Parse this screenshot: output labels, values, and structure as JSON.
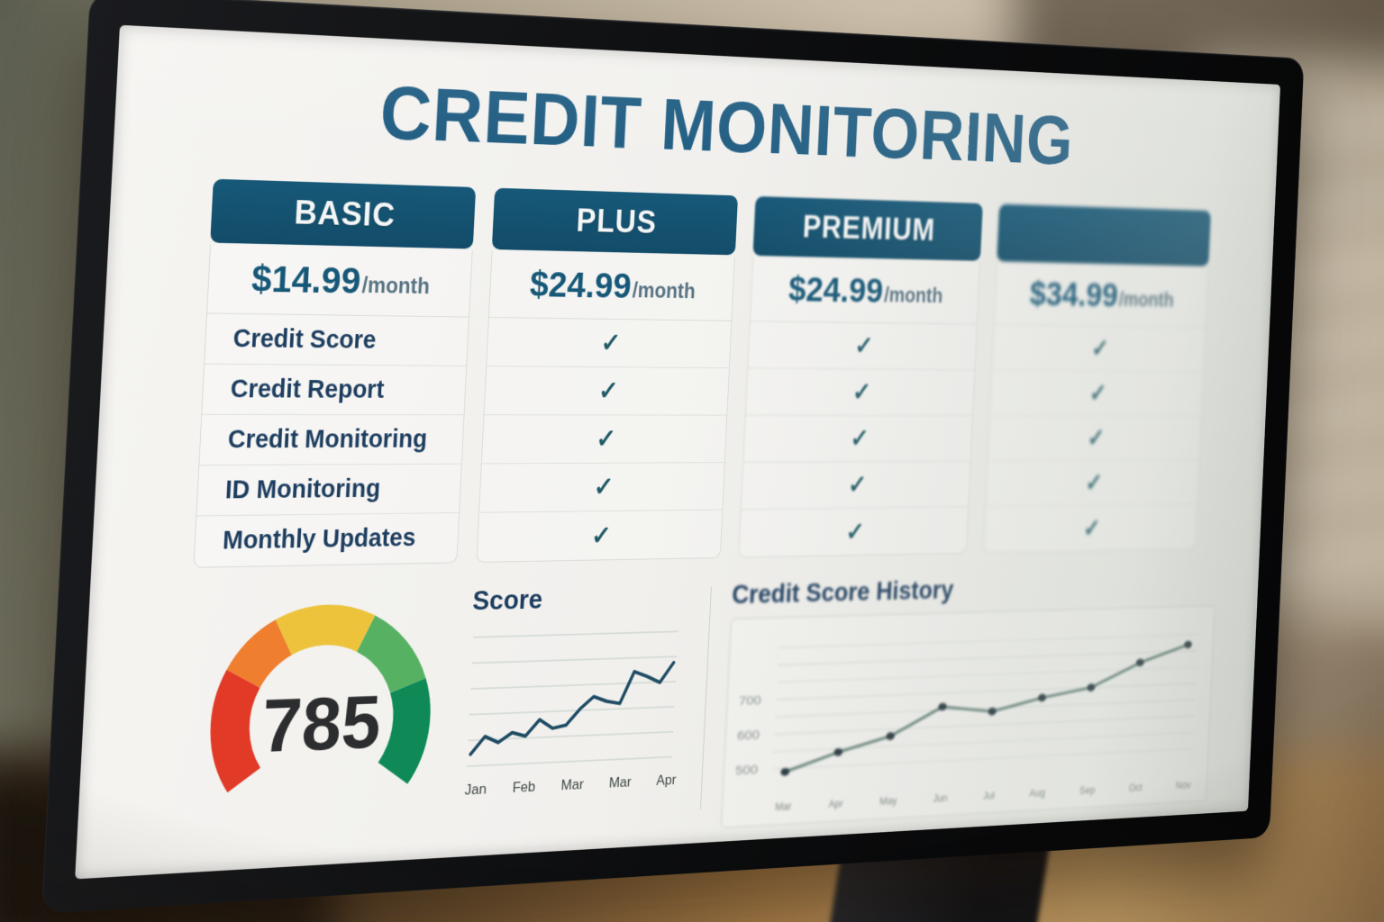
{
  "screen": {
    "title": "CREDIT MONITORING",
    "plans": [
      {
        "name": "BASIC",
        "price": "$14.99",
        "period": "/month",
        "type": "labels"
      },
      {
        "name": "PLUS",
        "price": "$24.99",
        "period": "/month",
        "checks": [
          true,
          true,
          true,
          true,
          true
        ]
      },
      {
        "name": "PREMIUM",
        "price": "$24.99",
        "period": "/month",
        "checks": [
          true,
          true,
          true,
          true,
          true
        ]
      },
      {
        "name": "",
        "price": "$34.99",
        "period": "/month",
        "checks": [
          true,
          true,
          true,
          true,
          true
        ]
      }
    ],
    "features": [
      "Credit Score",
      "Credit Report",
      "Credit Monitoring",
      "ID Monitoring",
      "Monthly Updates"
    ],
    "check_glyph": "✓",
    "gauge": {
      "value": "785",
      "segments": [
        {
          "color": "#e13a26",
          "from": 215,
          "to": 152
        },
        {
          "color": "#ef7e2e",
          "from": 152,
          "to": 118
        },
        {
          "color": "#ecc33b",
          "from": 118,
          "to": 64
        },
        {
          "color": "#56b163",
          "from": 64,
          "to": 20
        },
        {
          "color": "#0f8a56",
          "from": 20,
          "to": -35
        }
      ]
    }
  },
  "chart_data": [
    {
      "type": "line",
      "title": "Score",
      "x_labels": [
        "Jan",
        "Feb",
        "Mar",
        "Mar",
        "Apr"
      ],
      "values": [
        14,
        27,
        22,
        29,
        26,
        38,
        31,
        33,
        45,
        54,
        50,
        48,
        72,
        68,
        63,
        78
      ],
      "ylim": [
        0,
        100
      ],
      "grid": true,
      "line_color": "#1d4a63"
    },
    {
      "type": "line",
      "title": "Credit Score History",
      "x_labels": [
        "Mar",
        "Apr",
        "May",
        "Jun",
        "Jul",
        "Aug",
        "Sep",
        "Oct",
        "Nov"
      ],
      "values": [
        490,
        540,
        580,
        660,
        640,
        675,
        700,
        770,
        820
      ],
      "yticks": [
        700,
        600,
        500
      ],
      "ylim": [
        450,
        880
      ],
      "grid": true,
      "markers": true,
      "line_color": "#5e7d74"
    }
  ],
  "colors": {
    "header_blue": "#175878",
    "title_blue": "#1c5a80",
    "feature_navy": "#1e3e60",
    "check_teal": "#1f5a66",
    "gauge_red": "#e13a26",
    "gauge_orange": "#ef7e2e",
    "gauge_yellow": "#ecc33b",
    "gauge_green": "#56b163",
    "gauge_dark_green": "#0f8a56"
  }
}
